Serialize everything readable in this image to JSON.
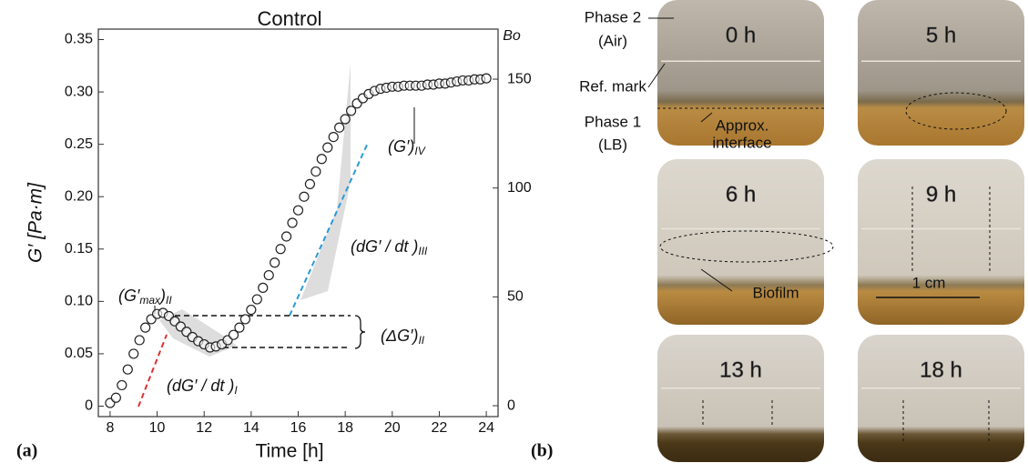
{
  "chart_data": {
    "type": "scatter",
    "title": "Control",
    "x_label": "Time [h]",
    "y_label": "G′ [Pa·m]",
    "y2_label": "Bo",
    "xlim": [
      7.5,
      24.5
    ],
    "xticks": [
      8,
      10,
      12,
      14,
      16,
      18,
      20,
      22,
      24
    ],
    "ylim": [
      -0.01,
      0.36
    ],
    "yticks": [
      0,
      0.05,
      {
        "value": 0.1,
        "label": "0.10"
      },
      0.15,
      {
        "value": 0.2,
        "label": "0.20"
      },
      0.25,
      {
        "value": 0.3,
        "label": "0.30"
      },
      0.35
    ],
    "y2lim": [
      -5,
      173
    ],
    "y2ticks": [
      0,
      50,
      100,
      150
    ],
    "series": [
      {
        "name": "G′",
        "color": "#222222",
        "x": [
          8,
          8.25,
          8.5,
          8.75,
          9,
          9.25,
          9.5,
          9.75,
          10,
          10.25,
          10.5,
          10.75,
          11,
          11.25,
          11.5,
          11.75,
          12,
          12.25,
          12.5,
          12.75,
          13,
          13.25,
          13.5,
          13.75,
          14,
          14.25,
          14.5,
          14.75,
          15,
          15.25,
          15.5,
          15.75,
          16,
          16.25,
          16.5,
          16.75,
          17,
          17.25,
          17.5,
          17.75,
          18,
          18.25,
          18.5,
          18.75,
          19,
          19.25,
          19.5,
          19.75,
          20,
          20.25,
          20.5,
          20.75,
          21,
          21.25,
          21.5,
          21.75,
          22,
          22.25,
          22.5,
          22.75,
          23,
          23.25,
          23.5,
          23.75,
          24
        ],
        "values": [
          0.003,
          0.008,
          0.02,
          0.035,
          0.05,
          0.063,
          0.075,
          0.083,
          0.088,
          0.089,
          0.086,
          0.081,
          0.076,
          0.071,
          0.066,
          0.062,
          0.059,
          0.056,
          0.057,
          0.059,
          0.063,
          0.068,
          0.075,
          0.083,
          0.092,
          0.102,
          0.113,
          0.125,
          0.137,
          0.15,
          0.162,
          0.175,
          0.187,
          0.2,
          0.212,
          0.224,
          0.236,
          0.247,
          0.257,
          0.266,
          0.274,
          0.282,
          0.289,
          0.294,
          0.298,
          0.301,
          0.303,
          0.304,
          0.305,
          0.305,
          0.306,
          0.306,
          0.306,
          0.306,
          0.307,
          0.307,
          0.308,
          0.308,
          0.309,
          0.31,
          0.311,
          0.311,
          0.312,
          0.312,
          0.313
        ]
      }
    ],
    "annotations": [
      {
        "parts": [
          {
            "text": "(G′"
          },
          {
            "text": "max",
            "sub": true
          },
          {
            "text": ")"
          },
          {
            "text": "II",
            "sub": true
          }
        ]
      },
      {
        "parts": [
          {
            "text": "(dG′ / dt )"
          },
          {
            "text": "I",
            "sub": true
          }
        ]
      },
      {
        "parts": [
          {
            "text": "(ΔG′)"
          },
          {
            "text": "II",
            "sub": true
          }
        ]
      },
      {
        "parts": [
          {
            "text": "(dG′ / dt )"
          },
          {
            "text": "III",
            "sub": true
          }
        ]
      },
      {
        "parts": [
          {
            "text": "(G′)"
          },
          {
            "text": "IV",
            "sub": true
          }
        ]
      }
    ]
  },
  "panel_labels": [
    "(a)",
    "(b)"
  ],
  "panel_b": {
    "tiles": [
      "0 h",
      "5 h",
      "6 h",
      "9 h",
      "13 h",
      "18 h"
    ],
    "side_labels": [
      "Phase 2",
      "(Air)",
      "Ref. mark",
      "Phase 1",
      "(LB)"
    ],
    "inner_labels": [
      "Approx.",
      "interface",
      "Biofilm",
      "1 cm"
    ]
  }
}
